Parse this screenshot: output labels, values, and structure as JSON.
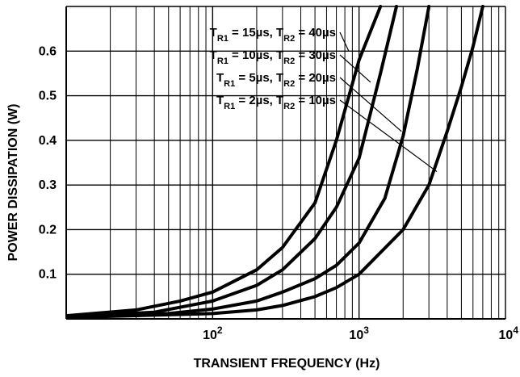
{
  "chart_data": {
    "type": "line",
    "title": "",
    "xlabel": "TRANSIENT FREQUENCY (Hz)",
    "ylabel": "POWER DISSIPATION (W)",
    "xscale": "log",
    "xlim": [
      10,
      10000
    ],
    "ylim": [
      0,
      0.7
    ],
    "grid": true,
    "x_ticks": [
      {
        "value": 100,
        "base": "10",
        "exp": "2"
      },
      {
        "value": 1000,
        "base": "10",
        "exp": "3"
      },
      {
        "value": 10000,
        "base": "10",
        "exp": "4"
      }
    ],
    "y_ticks": [
      {
        "value": 0.1,
        "label": "0.1"
      },
      {
        "value": 0.2,
        "label": "0.2"
      },
      {
        "value": 0.3,
        "label": "0.3"
      },
      {
        "value": 0.4,
        "label": "0.4"
      },
      {
        "value": 0.5,
        "label": "0.5"
      },
      {
        "value": 0.6,
        "label": "0.6"
      }
    ],
    "series": [
      {
        "name": "TR1 = 15µs, TR2 = 40µs",
        "legend": {
          "t1_sub": "R1",
          "t1_val": " = 15µs, ",
          "t2_sub": "R2",
          "t2_val": " = 40µs"
        },
        "x": [
          10,
          30,
          60,
          100,
          200,
          300,
          500,
          700,
          1000,
          1400
        ],
        "y": [
          0.007,
          0.02,
          0.04,
          0.06,
          0.11,
          0.16,
          0.26,
          0.4,
          0.58,
          0.7
        ]
      },
      {
        "name": "TR1 = 10µs, TR2 = 30µs",
        "legend": {
          "t1_sub": "R1",
          "t1_val": " = 10µs, ",
          "t2_sub": "R2",
          "t2_val": " = 30µs"
        },
        "x": [
          10,
          40,
          100,
          200,
          300,
          500,
          700,
          1000,
          1400,
          1800
        ],
        "y": [
          0.005,
          0.015,
          0.04,
          0.075,
          0.11,
          0.18,
          0.25,
          0.36,
          0.55,
          0.7
        ]
      },
      {
        "name": "TR1 = 5µs, TR2 = 20µs",
        "legend": {
          "t1_sub": "R1",
          "t1_val": " = 5µs, ",
          "t2_sub": "R2",
          "t2_val": " = 20µs"
        },
        "x": [
          10,
          50,
          100,
          200,
          300,
          500,
          700,
          1000,
          1500,
          2000,
          2500,
          3000
        ],
        "y": [
          0.004,
          0.012,
          0.022,
          0.04,
          0.06,
          0.09,
          0.12,
          0.17,
          0.27,
          0.41,
          0.56,
          0.7
        ]
      },
      {
        "name": "TR1 = 2µs, TR2 = 10µs",
        "legend": {
          "t1_sub": "R1",
          "t1_val": " = 2µs, ",
          "t2_sub": "R2",
          "t2_val": " = 10µs"
        },
        "x": [
          10,
          100,
          200,
          300,
          500,
          700,
          1000,
          2000,
          3000,
          4000,
          5000,
          6000,
          7000
        ],
        "y": [
          0.003,
          0.012,
          0.02,
          0.03,
          0.05,
          0.07,
          0.1,
          0.2,
          0.3,
          0.42,
          0.52,
          0.61,
          0.7
        ]
      }
    ],
    "annotation_points": [
      {
        "x": 850,
        "y": 0.6
      },
      {
        "x": 1200,
        "y": 0.53
      },
      {
        "x": 1950,
        "y": 0.42
      },
      {
        "x": 3400,
        "y": 0.33
      }
    ]
  }
}
